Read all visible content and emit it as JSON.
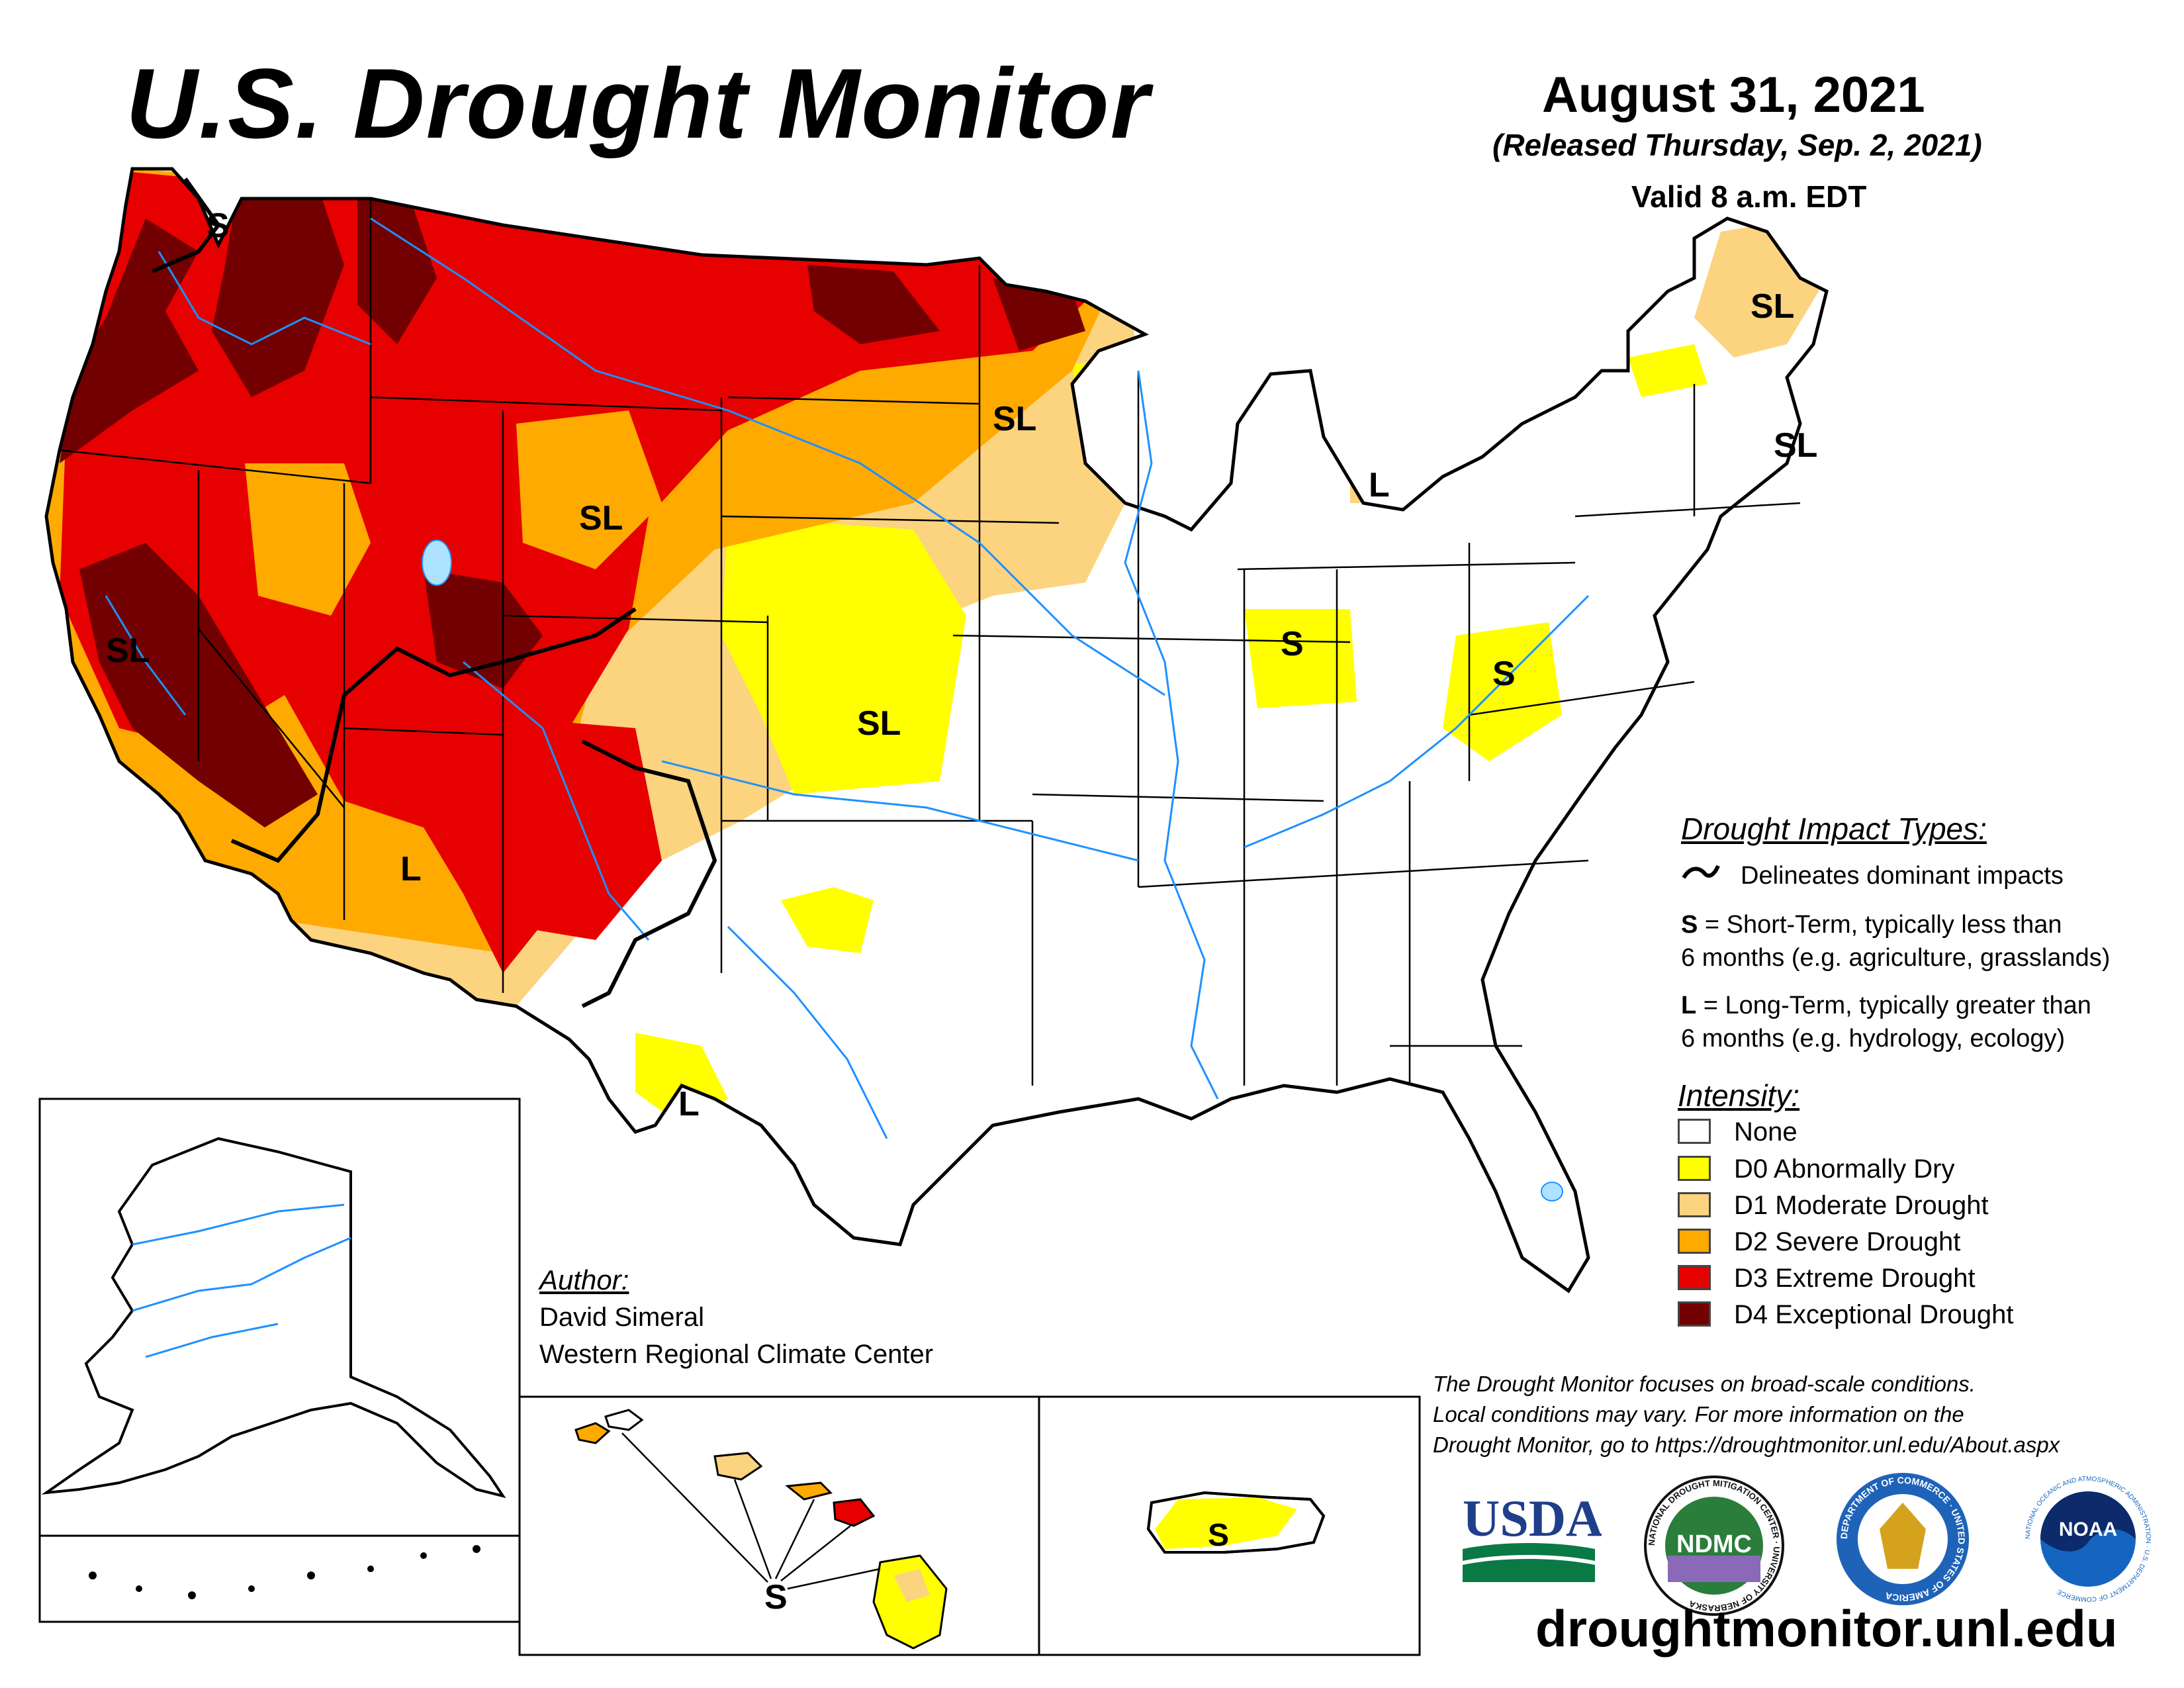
{
  "header": {
    "title": "U.S. Drought Monitor",
    "date": "August 31, 2021",
    "released": "(Released Thursday, Sep. 2, 2021)",
    "valid": "Valid 8 a.m. EDT"
  },
  "impact_legend": {
    "heading": "Drought Impact Types:",
    "delineates": "Delineates dominant impacts",
    "short_line1": "= Short-Term, typically less than",
    "short_line2": "6 months (e.g. agriculture, grasslands)",
    "short_key": "S",
    "long_line1": "= Long-Term, typically greater than",
    "long_line2": "6 months (e.g. hydrology, ecology)",
    "long_key": "L"
  },
  "intensity_legend": {
    "heading": "Intensity:",
    "items": [
      {
        "label": "None",
        "color": "#ffffff"
      },
      {
        "label": "D0 Abnormally Dry",
        "color": "#ffff00"
      },
      {
        "label": "D1 Moderate Drought",
        "color": "#fcd37f"
      },
      {
        "label": "D2 Severe Drought",
        "color": "#ffaa00"
      },
      {
        "label": "D3 Extreme Drought",
        "color": "#e60000"
      },
      {
        "label": "D4 Exceptional Drought",
        "color": "#730000"
      }
    ]
  },
  "author": {
    "heading": "Author:",
    "name": "David Simeral",
    "org": "Western Regional Climate Center"
  },
  "disclaimer": [
    "The Drought Monitor focuses on broad-scale conditions.",
    "Local conditions may vary. For more information on the",
    "Drought Monitor, go to https://droughtmonitor.unl.edu/About.aspx"
  ],
  "map_labels": {
    "wa": "S",
    "mt_nd": "SL",
    "wy": "SL",
    "ca_nv": "SL",
    "co_ks": "SL",
    "az": "L",
    "tx_w": "L",
    "mi": "L",
    "in": "S",
    "wv": "S",
    "me": "SL",
    "ma": "SL",
    "hawaii": "S",
    "puerto_rico": "S"
  },
  "logos": {
    "usda": "USDA",
    "ndmc": "NDMC",
    "ndmc_ring": "NATIONAL DROUGHT MITIGATION CENTER · UNIVERSITY OF NEBRASKA",
    "commerce_ring": "DEPARTMENT OF COMMERCE · UNITED STATES OF AMERICA",
    "noaa": "NOAA",
    "noaa_ring": "NATIONAL OCEANIC AND ATMOSPHERIC ADMINISTRATION · U.S. DEPARTMENT OF COMMERCE"
  },
  "url": "droughtmonitor.unl.edu"
}
